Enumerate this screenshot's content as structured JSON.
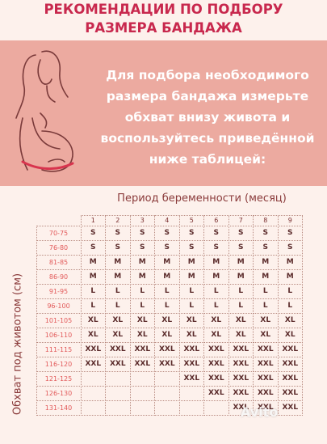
{
  "title": {
    "line1": "РЕКОМЕНДАЦИИ ПО ПОДБОРУ",
    "line2": "РАЗМЕРА БАНДАЖА"
  },
  "hero": {
    "line1": "Для подбора необходимого",
    "line2": "размера бандажа измерьте",
    "line3": "обхват внизу живота и",
    "line4": "воспользуйтесь приведённой",
    "line5": "ниже таблицей:"
  },
  "table": {
    "period_label": "Период беременности (месяц)",
    "y_label": "Обхват под животом (см)",
    "months": [
      "1",
      "2",
      "3",
      "4",
      "5",
      "6",
      "7",
      "8",
      "9"
    ],
    "rows": [
      {
        "label": "70-75",
        "cells": [
          "S",
          "S",
          "S",
          "S",
          "S",
          "S",
          "S",
          "S",
          "S"
        ]
      },
      {
        "label": "76-80",
        "cells": [
          "S",
          "S",
          "S",
          "S",
          "S",
          "S",
          "S",
          "S",
          "S"
        ]
      },
      {
        "label": "81-85",
        "cells": [
          "M",
          "M",
          "M",
          "M",
          "M",
          "M",
          "M",
          "M",
          "M"
        ]
      },
      {
        "label": "86-90",
        "cells": [
          "M",
          "M",
          "M",
          "M",
          "M",
          "M",
          "M",
          "M",
          "M"
        ]
      },
      {
        "label": "91-95",
        "cells": [
          "L",
          "L",
          "L",
          "L",
          "L",
          "L",
          "L",
          "L",
          "L"
        ]
      },
      {
        "label": "96-100",
        "cells": [
          "L",
          "L",
          "L",
          "L",
          "L",
          "L",
          "L",
          "L",
          "L"
        ]
      },
      {
        "label": "101-105",
        "cells": [
          "XL",
          "XL",
          "XL",
          "XL",
          "XL",
          "XL",
          "XL",
          "XL",
          "XL"
        ]
      },
      {
        "label": "106-110",
        "cells": [
          "XL",
          "XL",
          "XL",
          "XL",
          "XL",
          "XL",
          "XL",
          "XL",
          "XL"
        ]
      },
      {
        "label": "111-115",
        "cells": [
          "XXL",
          "XXL",
          "XXL",
          "XXL",
          "XXL",
          "XXL",
          "XXL",
          "XXL",
          "XXL"
        ]
      },
      {
        "label": "116-120",
        "cells": [
          "XXL",
          "XXL",
          "XXL",
          "XXL",
          "XXL",
          "XXL",
          "XXL",
          "XXL",
          "XXL"
        ]
      },
      {
        "label": "121-125",
        "cells": [
          "",
          "",
          "",
          "",
          "XXL",
          "XXL",
          "XXL",
          "XXL",
          "XXL"
        ]
      },
      {
        "label": "126-130",
        "cells": [
          "",
          "",
          "",
          "",
          "",
          "XXL",
          "XXL",
          "XXL",
          "XXL"
        ]
      },
      {
        "label": "131-140",
        "cells": [
          "",
          "",
          "",
          "",
          "",
          "",
          "XXL",
          "XXL",
          "XXL"
        ]
      }
    ]
  },
  "watermark": "Avito",
  "colors": {
    "title": "#c8284d",
    "hero_bg": "#ecaaa0",
    "row_label": "#e25a5a"
  }
}
